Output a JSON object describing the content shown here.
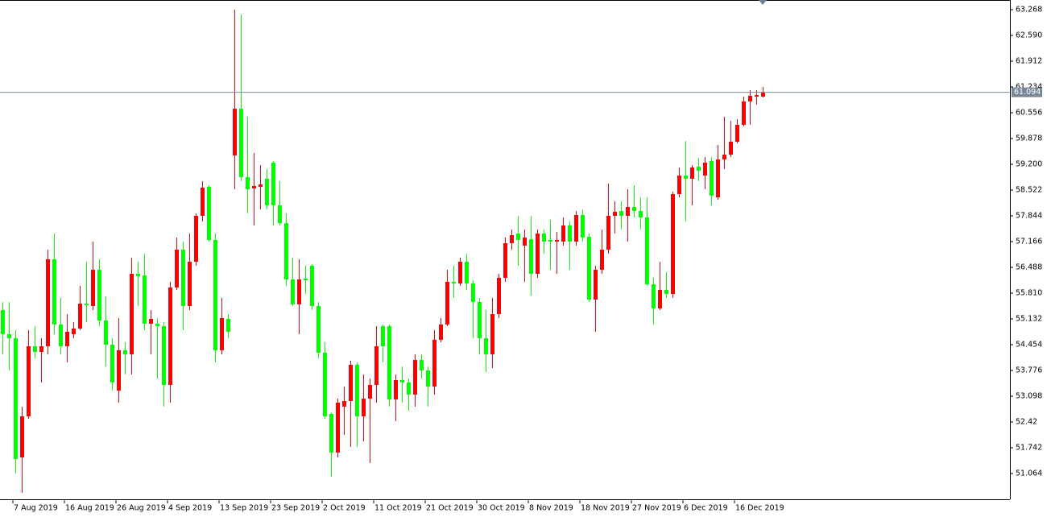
{
  "chart_data": {
    "type": "candlestick",
    "x": [
      null,
      null,
      "7 Aug 2019",
      null,
      null,
      null,
      null,
      null,
      null,
      null,
      "16 Aug 2019",
      null,
      null,
      null,
      null,
      null,
      null,
      null,
      "26 Aug 2019",
      null,
      null,
      null,
      null,
      null,
      null,
      null,
      "4 Sep 2019",
      null,
      null,
      null,
      null,
      null,
      null,
      null,
      "13 Sep 2019",
      null,
      null,
      null,
      null,
      null,
      null,
      null,
      "23 Sep 2019",
      null,
      null,
      null,
      null,
      null,
      null,
      null,
      "2 Oct 2019",
      null,
      null,
      null,
      null,
      null,
      null,
      null,
      "11 Oct 2019",
      null,
      null,
      null,
      null,
      null,
      null,
      null,
      "21 Oct 2019",
      null,
      null,
      null,
      null,
      null,
      null,
      null,
      "30 Oct 2019",
      null,
      null,
      null,
      null,
      null,
      null,
      null,
      "8 Nov 2019",
      null,
      null,
      null,
      null,
      null,
      null,
      null,
      "18 Nov 2019",
      null,
      null,
      null,
      null,
      null,
      null,
      null,
      "27 Nov 2019",
      null,
      null,
      null,
      null,
      null,
      null,
      null,
      "6 Dec 2019",
      null,
      null,
      null,
      null,
      null,
      null,
      null,
      "16 Dec 2019",
      null,
      null,
      null,
      null
    ],
    "open": [
      55.365,
      54.73,
      54.624,
      51.488,
      52.569,
      54.412,
      54.264,
      54.412,
      56.7,
      54.984,
      54.412,
      54.73,
      54.878,
      55.535,
      55.471,
      56.425,
      55.09,
      54.454,
      53.247,
      54.306,
      54.2,
      56.319,
      56.276,
      55.005,
      55.005,
      54.942,
      53.395,
      55.959,
      56.954,
      55.471,
      56.637,
      57.844,
      58.607,
      57.209,
      54.306,
      55.132,
      59.433,
      60.662,
      58.861,
      58.564,
      58.607,
      58.819,
      59.242,
      58.12,
      57.653,
      56.17,
      55.514,
      56.192,
      56.531,
      55.471,
      54.243,
      52.632,
      51.615,
      52.823,
      52.971,
      53.925,
      52.569,
      53.035,
      53.395,
      54.942,
      54.942,
      53.014,
      53.522,
      53.459,
      53.141,
      54.052,
      53.776,
      53.353,
      54.582,
      54.984,
      56.107,
      56.065,
      56.637,
      56.065,
      55.577,
      54.624,
      54.2,
      55.259,
      56.213,
      57.124,
      57.378,
      57.06,
      57.23,
      56.319,
      57.378,
      57.209,
      57.166,
      57.166,
      57.59,
      57.166,
      57.865,
      57.293,
      55.641,
      56.425,
      56.954,
      57.844,
      57.971,
      57.844,
      58.077,
      57.971,
      57.802,
      56.043,
      55.408,
      55.895,
      55.789,
      58.416,
      58.903,
      58.819,
      59.136,
      58.903,
      59.285,
      58.331,
      59.327,
      59.454,
      59.793,
      60.238,
      60.853,
      60.98,
      60.98
    ],
    "high": [
      55.577,
      55.577,
      54.836,
      52.823,
      54.836,
      54.942,
      54.624,
      56.954,
      57.378,
      55.683,
      55.259,
      55.048,
      56.001,
      56.637,
      57.166,
      56.7,
      55.726,
      54.624,
      55.154,
      54.518,
      56.742,
      56.637,
      56.848,
      55.365,
      55.154,
      55.048,
      56.107,
      57.272,
      57.166,
      57.378,
      57.908,
      58.755,
      58.649,
      57.378,
      55.683,
      55.259,
      63.268,
      63.141,
      60.45,
      59.497,
      59.179,
      59.073,
      59.285,
      58.755,
      57.908,
      56.742,
      56.7,
      56.531,
      56.573,
      55.577,
      54.518,
      52.675,
      53.035,
      53.353,
      54.031,
      53.988,
      53.671,
      53.565,
      54.942,
      54.984,
      54.984,
      53.671,
      53.882,
      53.565,
      54.2,
      54.2,
      53.882,
      54.836,
      55.154,
      56.425,
      56.531,
      56.742,
      56.848,
      56.149,
      55.683,
      55.365,
      55.683,
      56.319,
      57.272,
      57.484,
      57.844,
      57.484,
      57.844,
      57.484,
      57.484,
      57.738,
      57.42,
      57.802,
      57.696,
      57.971,
      58.014,
      57.378,
      56.531,
      57.484,
      58.692,
      58.225,
      58.225,
      58.543,
      58.649,
      58.331,
      58.331,
      56.213,
      56.637,
      56.361,
      58.48,
      59.115,
      59.814,
      59.179,
      59.37,
      59.391,
      59.391,
      59.709,
      60.45,
      60.344,
      60.386,
      60.98,
      61.149,
      61.149,
      61.234
    ],
    "low": [
      54.2,
      53.776,
      51.065,
      50.556,
      52.505,
      54.094,
      53.459,
      54.2,
      54.73,
      54.2,
      53.988,
      54.624,
      54.836,
      55.048,
      55.365,
      54.942,
      53.882,
      53.247,
      52.929,
      53.671,
      53.671,
      55.471,
      54.836,
      54.2,
      53.565,
      52.823,
      52.929,
      55.895,
      54.836,
      55.365,
      56.531,
      57.696,
      57.166,
      53.988,
      54.2,
      54.624,
      58.543,
      58.755,
      57.908,
      57.59,
      58.014,
      58.014,
      57.59,
      57.59,
      56.001,
      55.471,
      54.73,
      55.789,
      55.365,
      54.094,
      52.505,
      50.98,
      51.488,
      52.082,
      51.764,
      51.764,
      51.912,
      51.34,
      52.929,
      53.988,
      52.823,
      52.442,
      52.929,
      52.717,
      52.823,
      53.565,
      52.823,
      53.141,
      54.518,
      54.942,
      55.683,
      56.001,
      55.895,
      54.624,
      54.2,
      53.734,
      53.84,
      55.154,
      56.107,
      56.954,
      56.531,
      56.107,
      55.747,
      56.213,
      56.848,
      56.425,
      56.319,
      57.06,
      56.425,
      57.06,
      57.166,
      55.577,
      54.793,
      56.319,
      56.848,
      57.378,
      57.484,
      57.166,
      57.802,
      57.484,
      56.001,
      54.984,
      55.365,
      55.683,
      55.683,
      58.331,
      57.696,
      58.12,
      58.755,
      58.543,
      58.12,
      58.268,
      59.073,
      59.391,
      59.751,
      60.196,
      60.238,
      60.768,
      60.959
    ],
    "close": [
      54.73,
      54.624,
      51.446,
      52.569,
      54.412,
      54.264,
      54.412,
      56.7,
      54.984,
      54.412,
      54.793,
      54.878,
      55.535,
      55.493,
      56.425,
      55.09,
      54.454,
      53.459,
      54.306,
      54.2,
      56.319,
      56.255,
      55.005,
      55.132,
      54.942,
      53.395,
      55.959,
      56.954,
      55.471,
      56.637,
      57.844,
      58.586,
      57.209,
      54.306,
      55.154,
      54.793,
      60.662,
      58.861,
      58.543,
      58.628,
      58.67,
      58.12,
      58.12,
      57.653,
      56.17,
      55.514,
      56.17,
      56.149,
      55.471,
      54.243,
      52.569,
      51.615,
      52.929,
      52.971,
      53.925,
      52.569,
      53.035,
      53.395,
      54.412,
      54.412,
      53.014,
      53.522,
      53.459,
      53.141,
      54.052,
      53.776,
      53.353,
      54.582,
      54.984,
      56.107,
      56.065,
      56.637,
      56.065,
      55.577,
      54.624,
      54.2,
      55.259,
      56.213,
      57.124,
      57.336,
      57.209,
      57.272,
      56.319,
      57.378,
      57.166,
      57.166,
      57.209,
      57.59,
      57.166,
      57.865,
      57.272,
      55.641,
      56.425,
      56.954,
      57.844,
      57.95,
      57.844,
      58.077,
      57.971,
      57.802,
      56.043,
      55.408,
      55.895,
      55.789,
      58.416,
      58.903,
      58.819,
      59.115,
      59.031,
      59.242,
      58.374,
      59.327,
      59.454,
      59.793,
      60.238,
      60.853,
      61.001,
      61.022,
      61.094
    ],
    "up_color": "#ff0000",
    "down_color": "#00ff00",
    "price_line": 61.094,
    "ylim": [
      50.386,
      63.522
    ],
    "yticks": [
      63.268,
      {
        "value": 62.59,
        "label": "62.590"
      },
      61.912,
      61.234,
      60.556,
      59.878,
      {
        "value": 59.2,
        "label": "59.200"
      },
      58.522,
      57.844,
      57.166,
      56.488,
      {
        "value": 55.81,
        "label": "55.810"
      },
      55.132,
      54.454,
      53.776,
      53.098,
      52.42,
      51.742,
      51.064
    ]
  }
}
